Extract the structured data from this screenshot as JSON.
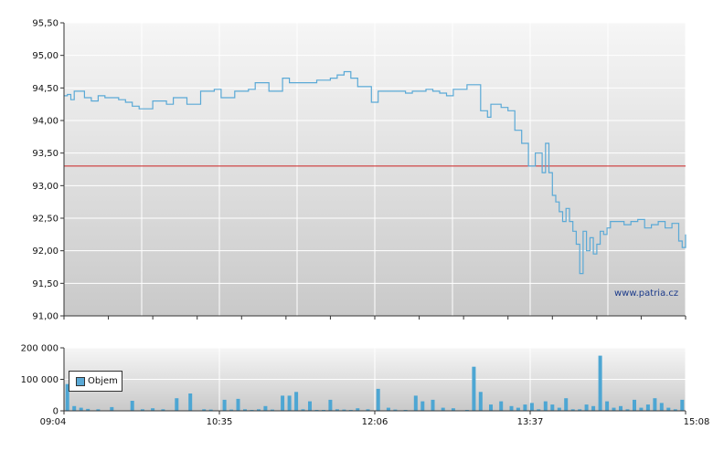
{
  "colors": {
    "price_line": "#5aa9d6",
    "reference_line": "#cc2222",
    "volume_bar": "#4da6d3",
    "grid": "#ffffff",
    "axis": "#333333"
  },
  "watermark": "www.patria.cz",
  "chart_data": [
    {
      "type": "line",
      "title": "",
      "xlabel": "",
      "ylabel": "",
      "x_ticks": [
        "09:04",
        "10:35",
        "12:06",
        "13:37",
        "15:08"
      ],
      "x_range_minutes": [
        544,
        908
      ],
      "y_ticks": [
        "91,00",
        "91,50",
        "92,00",
        "92,50",
        "93,00",
        "93,50",
        "94,00",
        "94,50",
        "95,00",
        "95,50"
      ],
      "ylim": [
        91.0,
        95.5
      ],
      "reference_line": 93.3,
      "grid": true,
      "series": [
        {
          "x": [
            "09:04",
            "09:06",
            "09:08",
            "09:10",
            "09:12",
            "09:16",
            "09:20",
            "09:24",
            "09:28",
            "09:32",
            "09:36",
            "09:40",
            "09:44",
            "09:48",
            "09:52",
            "09:56",
            "10:00",
            "10:04",
            "10:08",
            "10:12",
            "10:16",
            "10:20",
            "10:24",
            "10:28",
            "10:32",
            "10:36",
            "10:40",
            "10:44",
            "10:48",
            "10:52",
            "10:56",
            "11:00",
            "11:04",
            "11:08",
            "11:12",
            "11:16",
            "11:20",
            "11:24",
            "11:28",
            "11:32",
            "11:36",
            "11:40",
            "11:44",
            "11:48",
            "11:52",
            "11:56",
            "12:00",
            "12:04",
            "12:08",
            "12:10",
            "12:12",
            "12:16",
            "12:20",
            "12:24",
            "12:28",
            "12:32",
            "12:36",
            "12:40",
            "12:44",
            "12:48",
            "12:52",
            "12:56",
            "13:00",
            "13:04",
            "13:08",
            "13:12",
            "13:14",
            "13:16",
            "13:18",
            "13:20",
            "13:22",
            "13:24",
            "13:28",
            "13:32",
            "13:36",
            "13:40",
            "13:44",
            "13:46",
            "13:48",
            "13:50",
            "13:52",
            "13:54",
            "13:56",
            "13:58",
            "14:00",
            "14:02",
            "14:04",
            "14:06",
            "14:08",
            "14:10",
            "14:12",
            "14:14",
            "14:16",
            "14:18",
            "14:20",
            "14:22",
            "14:24",
            "14:28",
            "14:32",
            "14:36",
            "14:40",
            "14:44",
            "14:48",
            "14:52",
            "14:56",
            "15:00",
            "15:04",
            "15:06",
            "15:08"
          ],
          "y": [
            94.38,
            94.4,
            94.32,
            94.45,
            94.45,
            94.35,
            94.3,
            94.38,
            94.35,
            94.35,
            94.32,
            94.28,
            94.22,
            94.18,
            94.18,
            94.3,
            94.3,
            94.25,
            94.35,
            94.35,
            94.25,
            94.25,
            94.45,
            94.45,
            94.48,
            94.35,
            94.35,
            94.45,
            94.45,
            94.48,
            94.58,
            94.58,
            94.45,
            94.45,
            94.65,
            94.58,
            94.58,
            94.58,
            94.58,
            94.62,
            94.62,
            94.65,
            94.7,
            94.75,
            94.65,
            94.52,
            94.52,
            94.28,
            94.45,
            94.45,
            94.45,
            94.45,
            94.45,
            94.42,
            94.45,
            94.45,
            94.48,
            94.45,
            94.42,
            94.38,
            94.48,
            94.48,
            94.55,
            94.55,
            94.15,
            94.05,
            94.25,
            94.25,
            94.25,
            94.2,
            94.2,
            94.15,
            93.85,
            93.65,
            93.3,
            93.5,
            93.2,
            93.65,
            93.2,
            92.85,
            92.75,
            92.6,
            92.45,
            92.65,
            92.45,
            92.3,
            92.1,
            91.65,
            92.3,
            92.0,
            92.2,
            91.95,
            92.1,
            92.3,
            92.25,
            92.35,
            92.45,
            92.45,
            92.4,
            92.45,
            92.48,
            92.35,
            92.4,
            92.45,
            92.35,
            92.42,
            92.15,
            92.05,
            92.25
          ]
        }
      ]
    },
    {
      "type": "bar",
      "title": "",
      "xlabel": "",
      "ylabel": "",
      "x_ticks": [
        "09:04",
        "10:35",
        "12:06",
        "13:37",
        "15:08"
      ],
      "y_ticks": [
        "0",
        "100 000",
        "200 000"
      ],
      "ylim": [
        0,
        200000
      ],
      "grid": true,
      "legend": "top-left",
      "series": [
        {
          "name": "Objem",
          "x": [
            "09:06",
            "09:10",
            "09:14",
            "09:18",
            "09:24",
            "09:32",
            "09:44",
            "09:50",
            "09:56",
            "10:02",
            "10:10",
            "10:18",
            "10:26",
            "10:30",
            "10:38",
            "10:42",
            "10:46",
            "10:50",
            "10:54",
            "10:58",
            "11:02",
            "11:06",
            "11:12",
            "11:16",
            "11:20",
            "11:24",
            "11:28",
            "11:32",
            "11:36",
            "11:40",
            "11:44",
            "11:48",
            "11:52",
            "11:56",
            "12:02",
            "12:08",
            "12:14",
            "12:18",
            "12:24",
            "12:30",
            "12:34",
            "12:40",
            "12:46",
            "12:52",
            "13:00",
            "13:04",
            "13:08",
            "13:14",
            "13:20",
            "13:26",
            "13:30",
            "13:34",
            "13:38",
            "13:42",
            "13:46",
            "13:50",
            "13:54",
            "13:58",
            "14:02",
            "14:06",
            "14:10",
            "14:14",
            "14:18",
            "14:22",
            "14:26",
            "14:30",
            "14:34",
            "14:38",
            "14:42",
            "14:46",
            "14:50",
            "14:54",
            "14:58",
            "15:02",
            "15:06"
          ],
          "values": [
            85000,
            15000,
            10000,
            6000,
            5000,
            12000,
            32000,
            5000,
            8000,
            5000,
            40000,
            55000,
            5000,
            4000,
            35000,
            4000,
            38000,
            5000,
            3000,
            5000,
            15000,
            4000,
            48000,
            48000,
            60000,
            5000,
            30000,
            3000,
            3000,
            35000,
            5000,
            4000,
            3000,
            8000,
            5000,
            70000,
            10000,
            4000,
            3000,
            48000,
            30000,
            35000,
            10000,
            8000,
            3000,
            140000,
            60000,
            20000,
            30000,
            15000,
            10000,
            20000,
            25000,
            5000,
            30000,
            20000,
            10000,
            40000,
            5000,
            5000,
            20000,
            15000,
            175000,
            30000,
            10000,
            15000,
            5000,
            35000,
            10000,
            20000,
            40000,
            25000,
            10000,
            5000,
            35000
          ]
        }
      ]
    }
  ]
}
